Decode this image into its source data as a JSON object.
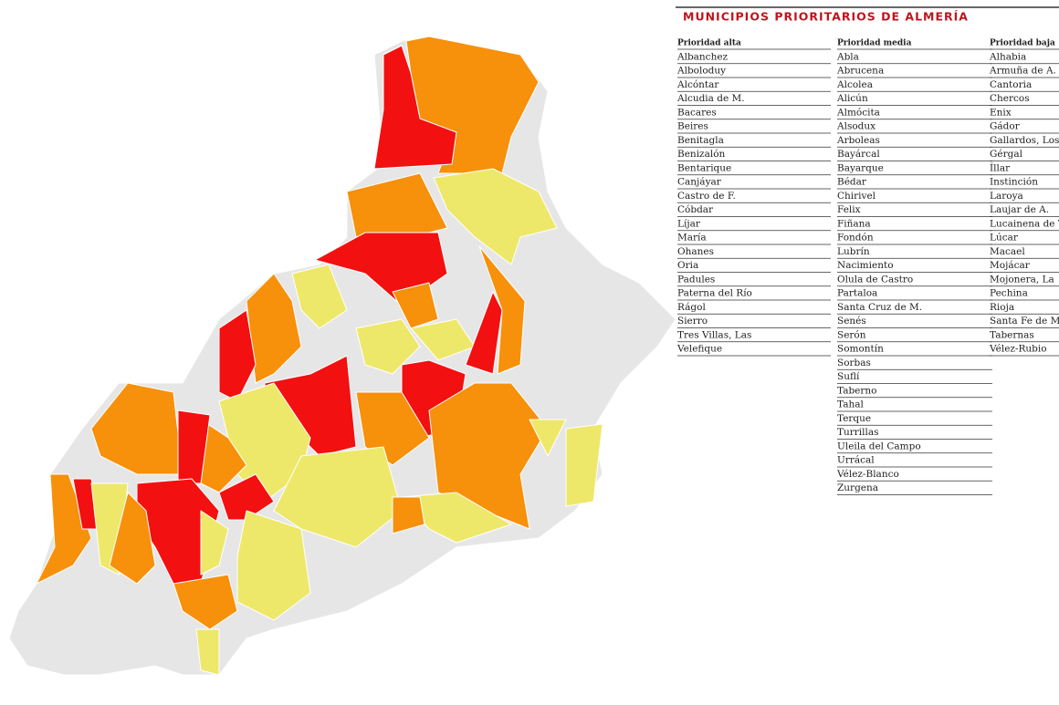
{
  "table": {
    "title": "MUNICIPIOS PRIORITARIOS DE ALMERÍA",
    "columns": [
      {
        "header": "Prioridad alta",
        "items": [
          "Albanchez",
          "Alboloduy",
          "Alcóntar",
          "Alcudia de M.",
          "Bacares",
          "Beires",
          "Benitagla",
          "Benizalón",
          "Bentarique",
          "Canjáyar",
          "Castro de F.",
          "Cóbdar",
          "Líjar",
          "María",
          "Ohanes",
          "Oria",
          "Padules",
          "Paterna del Río",
          "Rágol",
          "Sierro",
          "Tres Villas, Las",
          "Velefique"
        ]
      },
      {
        "header": "Prioridad media",
        "items": [
          "Abla",
          "Abrucena",
          "Alcolea",
          "Alicún",
          "Almócita",
          "Alsodux",
          "Arboleas",
          "Bayárcal",
          "Bayarque",
          "Bédar",
          "Chirivel",
          "Felix",
          "Fiñana",
          "Fondón",
          "Lubrín",
          "Nacimiento",
          "Olula de Castro",
          "Partaloa",
          "Santa Cruz de M.",
          "Senés",
          "Serón",
          "Somontín",
          "Sorbas",
          "Suflí",
          "Taberno",
          "Tahal",
          "Terque",
          "Turrillas",
          "Uleila del Campo",
          "Urrácal",
          "Vélez-Blanco",
          "Zurgena"
        ]
      },
      {
        "header": "Prioridad baja",
        "items": [
          "Alhabia",
          "Armuña de A.",
          "Cantoria",
          "Chercos",
          "Enix",
          "Gádor",
          "Gallardos, Los",
          "Gérgal",
          "Íllar",
          "Instinción",
          "Laroya",
          "Laujar de A.",
          "Lucainena de T.",
          "Lúcar",
          "Macael",
          "Mojácar",
          "Mojonera, La",
          "Pechina",
          "Rioja",
          "Santa Fe de M.",
          "Tabernas",
          "Vélez-Rubio"
        ]
      }
    ]
  }
}
